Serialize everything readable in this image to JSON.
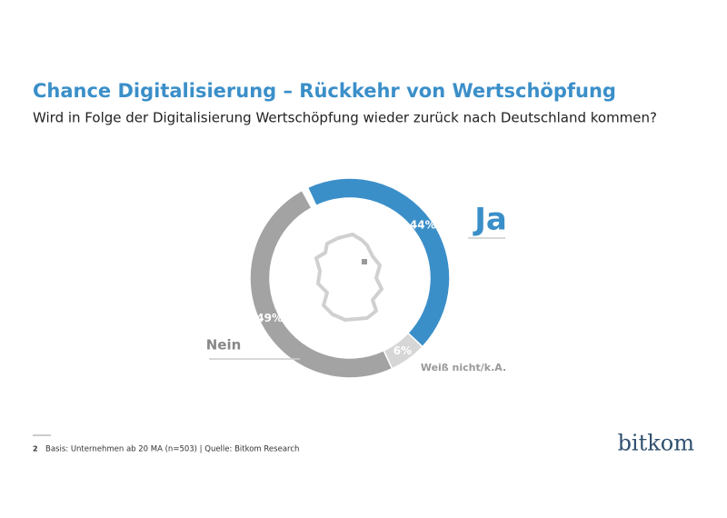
{
  "chart_data": {
    "type": "donut",
    "title": "Chance Digitalisierung – Rückkehr von Wertschöpfung",
    "subtitle": "Wird in Folge der Digitalisierung Wertschöpfung wieder zurück nach Deutschland kommen?",
    "categories": [
      "Ja",
      "Weiß nicht/k.A.",
      "Nein"
    ],
    "values": [
      44,
      6,
      49
    ],
    "value_labels": [
      "44%",
      "6%",
      "49%"
    ],
    "colors": [
      "#3b8fc9",
      "#d6d6d6",
      "#a3a3a3"
    ]
  },
  "footer": {
    "page": "2",
    "source": "Basis: Unternehmen ab 20 MA (n=503) | Quelle: Bitkom Research"
  },
  "logo": "bitkom"
}
